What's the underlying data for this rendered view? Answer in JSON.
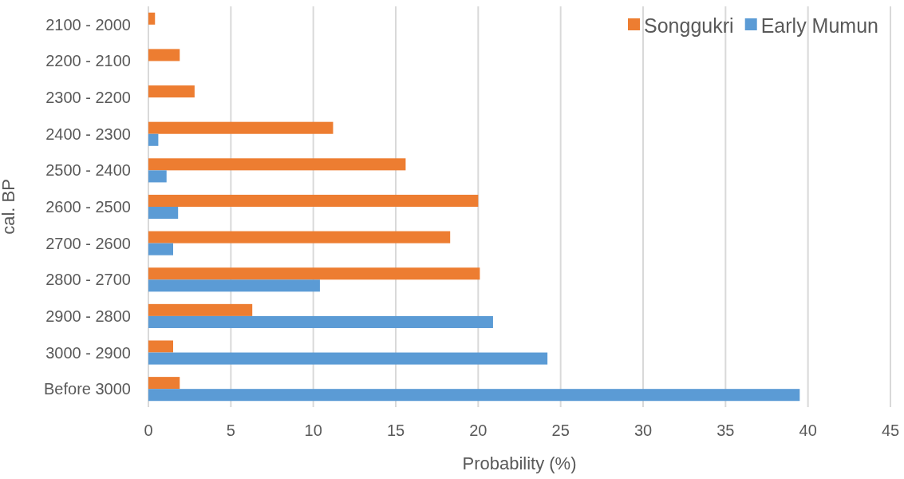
{
  "chart_data": {
    "type": "bar",
    "orientation": "horizontal",
    "xlabel": "Probability (%)",
    "ylabel": "cal. BP",
    "categories": [
      "2100 - 2000",
      "2200 - 2100",
      "2300 - 2200",
      "2400 - 2300",
      "2500 - 2400",
      "2600 - 2500",
      "2700 - 2600",
      "2800 - 2700",
      "2900 - 2800",
      "3000 - 2900",
      "Before 3000"
    ],
    "series": [
      {
        "name": "Songgukri",
        "color": "#ed7d31",
        "values": [
          0.4,
          1.9,
          2.8,
          11.2,
          15.6,
          20.0,
          18.3,
          20.1,
          6.3,
          1.5,
          1.9
        ]
      },
      {
        "name": "Early Mumun",
        "color": "#5b9bd5",
        "values": [
          null,
          null,
          null,
          0.6,
          1.1,
          1.8,
          1.5,
          10.4,
          20.9,
          24.2,
          39.5
        ]
      }
    ],
    "xlim": [
      0,
      45
    ],
    "xticks": [
      0,
      5,
      10,
      15,
      20,
      25,
      30,
      35,
      40,
      45
    ],
    "grid": "x",
    "legend": "top right"
  }
}
